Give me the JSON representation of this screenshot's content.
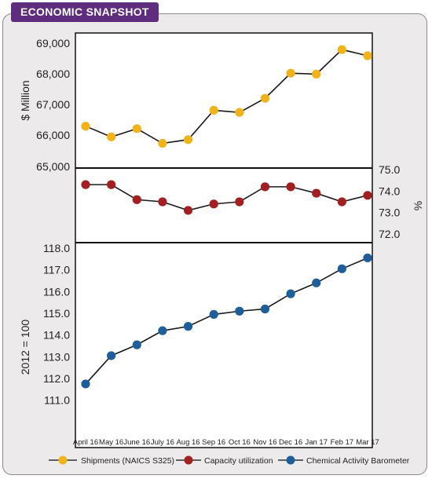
{
  "header": {
    "title": "ECONOMIC SNAPSHOT"
  },
  "colors": {
    "panel_bg": "#eceaea",
    "badge_bg": "#5e2d7d",
    "shipments": "#f0b41a",
    "capacity": "#a31f21",
    "cab": "#1e5f9b"
  },
  "chart_data": [
    {
      "type": "line",
      "ylabel": "$ Million",
      "ylim": [
        65000,
        69000
      ],
      "yticks": [
        "69,000",
        "68,000",
        "67,000",
        "66,000",
        "65,000"
      ],
      "categories": [
        "April 16",
        "May 16",
        "June 16",
        "July 16",
        "Aug 16",
        "Sep 16",
        "Oct 16",
        "Nov 16",
        "Dec 16",
        "Jan 17",
        "Feb 17",
        "Mar 17"
      ],
      "series": [
        {
          "name": "Shipments (NAICS S325)",
          "values": [
            66290,
            65940,
            66210,
            65730,
            65850,
            66810,
            66740,
            67200,
            68020,
            67990,
            68790,
            68590
          ]
        }
      ]
    },
    {
      "type": "line",
      "ylabel": "%",
      "ylim": [
        72.0,
        75.0
      ],
      "yticks": [
        "75.0",
        "74.0",
        "73.0",
        "72.0"
      ],
      "categories": [
        "April 16",
        "May 16",
        "June 16",
        "July 16",
        "Aug 16",
        "Sep 16",
        "Oct 16",
        "Nov 16",
        "Dec 16",
        "Jan 17",
        "Feb 17",
        "Mar 17"
      ],
      "series": [
        {
          "name": "Capacity utilization",
          "values": [
            74.3,
            74.3,
            73.6,
            73.5,
            73.1,
            73.4,
            73.5,
            74.2,
            74.2,
            73.9,
            73.5,
            73.8
          ]
        }
      ]
    },
    {
      "type": "line",
      "ylabel": "2012 = 100",
      "ylim": [
        110.7,
        118.0
      ],
      "yticks": [
        "118.0",
        "117.0",
        "116.0",
        "115.0",
        "114.0",
        "113.0",
        "112.0",
        "111.0"
      ],
      "categories": [
        "April 16",
        "May 16",
        "June 16",
        "July 16",
        "Aug 16",
        "Sep 16",
        "Oct 16",
        "Nov 16",
        "Dec 16",
        "Jan 17",
        "Feb 17",
        "Mar 17"
      ],
      "series": [
        {
          "name": "Chemical Activity Barometer",
          "values": [
            111.75,
            113.05,
            113.55,
            114.2,
            114.4,
            114.95,
            115.1,
            115.2,
            115.9,
            116.4,
            117.05,
            117.55
          ]
        }
      ]
    }
  ],
  "legend": [
    {
      "label": "Shipments (NAICS S325)"
    },
    {
      "label": "Capacity utilization"
    },
    {
      "label": "Chemical Activity Barometer"
    }
  ]
}
